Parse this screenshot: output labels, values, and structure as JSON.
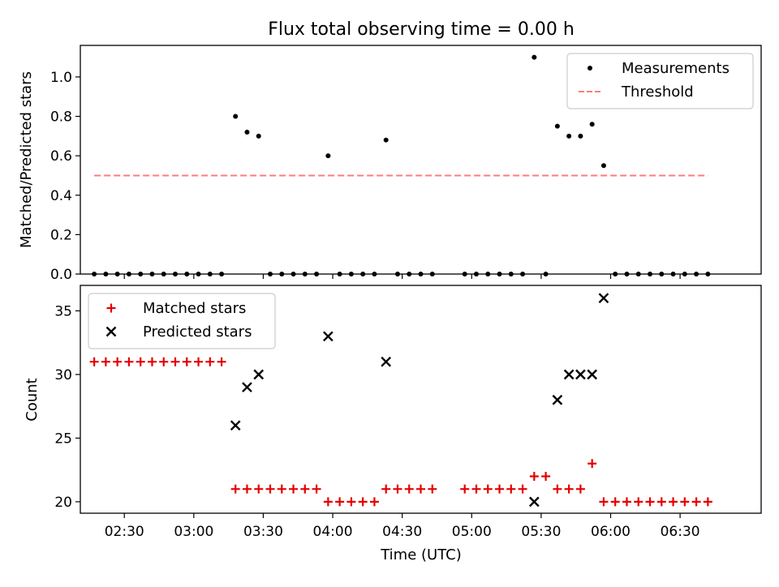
{
  "figure": {
    "title": "Flux total observing time = 0.00 h"
  },
  "chart_data": [
    {
      "type": "scatter",
      "title": "Flux total observing time = 0.00 h",
      "ylabel": "Matched/Predicted stars",
      "xlabel": "",
      "xlim": [
        "02:11",
        "07:05"
      ],
      "ylim": [
        0,
        1.16
      ],
      "yticks": [
        "0.0",
        "0.2",
        "0.4",
        "0.6",
        "0.8",
        "1.0"
      ],
      "grid": false,
      "legend_position": "top-right",
      "series": [
        {
          "name": "Measurements",
          "marker": "point",
          "color": "#000000",
          "points": [
            [
              "02:17",
              0.0
            ],
            [
              "02:22",
              0.0
            ],
            [
              "02:27",
              0.0
            ],
            [
              "02:32",
              0.0
            ],
            [
              "02:37",
              0.0
            ],
            [
              "02:42",
              0.0
            ],
            [
              "02:47",
              0.0
            ],
            [
              "02:52",
              0.0
            ],
            [
              "02:57",
              0.0
            ],
            [
              "03:02",
              0.0
            ],
            [
              "03:07",
              0.0
            ],
            [
              "03:12",
              0.0
            ],
            [
              "03:18",
              0.8
            ],
            [
              "03:23",
              0.72
            ],
            [
              "03:28",
              0.7
            ],
            [
              "03:33",
              0.0
            ],
            [
              "03:38",
              0.0
            ],
            [
              "03:43",
              0.0
            ],
            [
              "03:48",
              0.0
            ],
            [
              "03:53",
              0.0
            ],
            [
              "03:58",
              0.6
            ],
            [
              "04:03",
              0.0
            ],
            [
              "04:08",
              0.0
            ],
            [
              "04:13",
              0.0
            ],
            [
              "04:18",
              0.0
            ],
            [
              "04:23",
              0.68
            ],
            [
              "04:28",
              0.0
            ],
            [
              "04:33",
              0.0
            ],
            [
              "04:38",
              0.0
            ],
            [
              "04:43",
              0.0
            ],
            [
              "04:57",
              0.0
            ],
            [
              "05:02",
              0.0
            ],
            [
              "05:07",
              0.0
            ],
            [
              "05:12",
              0.0
            ],
            [
              "05:17",
              0.0
            ],
            [
              "05:22",
              0.0
            ],
            [
              "05:27",
              1.1
            ],
            [
              "05:32",
              0.0
            ],
            [
              "05:37",
              0.75
            ],
            [
              "05:42",
              0.7
            ],
            [
              "05:47",
              0.7
            ],
            [
              "05:52",
              0.76
            ],
            [
              "05:57",
              0.55
            ],
            [
              "06:02",
              0.0
            ],
            [
              "06:07",
              0.0
            ],
            [
              "06:12",
              0.0
            ],
            [
              "06:17",
              0.0
            ],
            [
              "06:22",
              0.0
            ],
            [
              "06:27",
              0.0
            ],
            [
              "06:32",
              0.0
            ],
            [
              "06:37",
              0.0
            ],
            [
              "06:42",
              0.0
            ]
          ]
        },
        {
          "name": "Threshold",
          "marker": "dashed-line",
          "color": "#ff7b7b",
          "points": [
            [
              "02:17",
              0.5
            ],
            [
              "06:42",
              0.5
            ]
          ]
        }
      ]
    },
    {
      "type": "scatter",
      "title": "",
      "ylabel": "Count",
      "xlabel": "Time (UTC)",
      "xlim": [
        "02:11",
        "07:05"
      ],
      "ylim": [
        19.1,
        37.0
      ],
      "xticks": [
        "02:30",
        "03:00",
        "03:30",
        "04:00",
        "04:30",
        "05:00",
        "05:30",
        "06:00",
        "06:30"
      ],
      "yticks": [
        "20",
        "25",
        "30",
        "35"
      ],
      "grid": false,
      "legend_position": "top-left",
      "series": [
        {
          "name": "Matched stars",
          "marker": "plus",
          "color": "#e60000",
          "points": [
            [
              "02:17",
              31
            ],
            [
              "02:22",
              31
            ],
            [
              "02:27",
              31
            ],
            [
              "02:32",
              31
            ],
            [
              "02:37",
              31
            ],
            [
              "02:42",
              31
            ],
            [
              "02:47",
              31
            ],
            [
              "02:52",
              31
            ],
            [
              "02:57",
              31
            ],
            [
              "03:02",
              31
            ],
            [
              "03:07",
              31
            ],
            [
              "03:12",
              31
            ],
            [
              "03:18",
              21
            ],
            [
              "03:23",
              21
            ],
            [
              "03:28",
              21
            ],
            [
              "03:33",
              21
            ],
            [
              "03:38",
              21
            ],
            [
              "03:43",
              21
            ],
            [
              "03:48",
              21
            ],
            [
              "03:53",
              21
            ],
            [
              "03:58",
              20
            ],
            [
              "04:03",
              20
            ],
            [
              "04:08",
              20
            ],
            [
              "04:13",
              20
            ],
            [
              "04:18",
              20
            ],
            [
              "04:23",
              21
            ],
            [
              "04:28",
              21
            ],
            [
              "04:33",
              21
            ],
            [
              "04:38",
              21
            ],
            [
              "04:43",
              21
            ],
            [
              "04:57",
              21
            ],
            [
              "05:02",
              21
            ],
            [
              "05:07",
              21
            ],
            [
              "05:12",
              21
            ],
            [
              "05:17",
              21
            ],
            [
              "05:22",
              21
            ],
            [
              "05:27",
              22
            ],
            [
              "05:32",
              22
            ],
            [
              "05:37",
              21
            ],
            [
              "05:42",
              21
            ],
            [
              "05:47",
              21
            ],
            [
              "05:52",
              23
            ],
            [
              "05:57",
              20
            ],
            [
              "06:02",
              20
            ],
            [
              "06:07",
              20
            ],
            [
              "06:12",
              20
            ],
            [
              "06:17",
              20
            ],
            [
              "06:22",
              20
            ],
            [
              "06:27",
              20
            ],
            [
              "06:32",
              20
            ],
            [
              "06:37",
              20
            ],
            [
              "06:42",
              20
            ]
          ]
        },
        {
          "name": "Predicted stars",
          "marker": "x",
          "color": "#000000",
          "points": [
            [
              "03:18",
              26
            ],
            [
              "03:23",
              29
            ],
            [
              "03:28",
              30
            ],
            [
              "03:58",
              33
            ],
            [
              "04:23",
              31
            ],
            [
              "05:27",
              20
            ],
            [
              "05:37",
              28
            ],
            [
              "05:42",
              30
            ],
            [
              "05:47",
              30
            ],
            [
              "05:52",
              30
            ],
            [
              "05:57",
              36
            ]
          ]
        }
      ]
    }
  ]
}
